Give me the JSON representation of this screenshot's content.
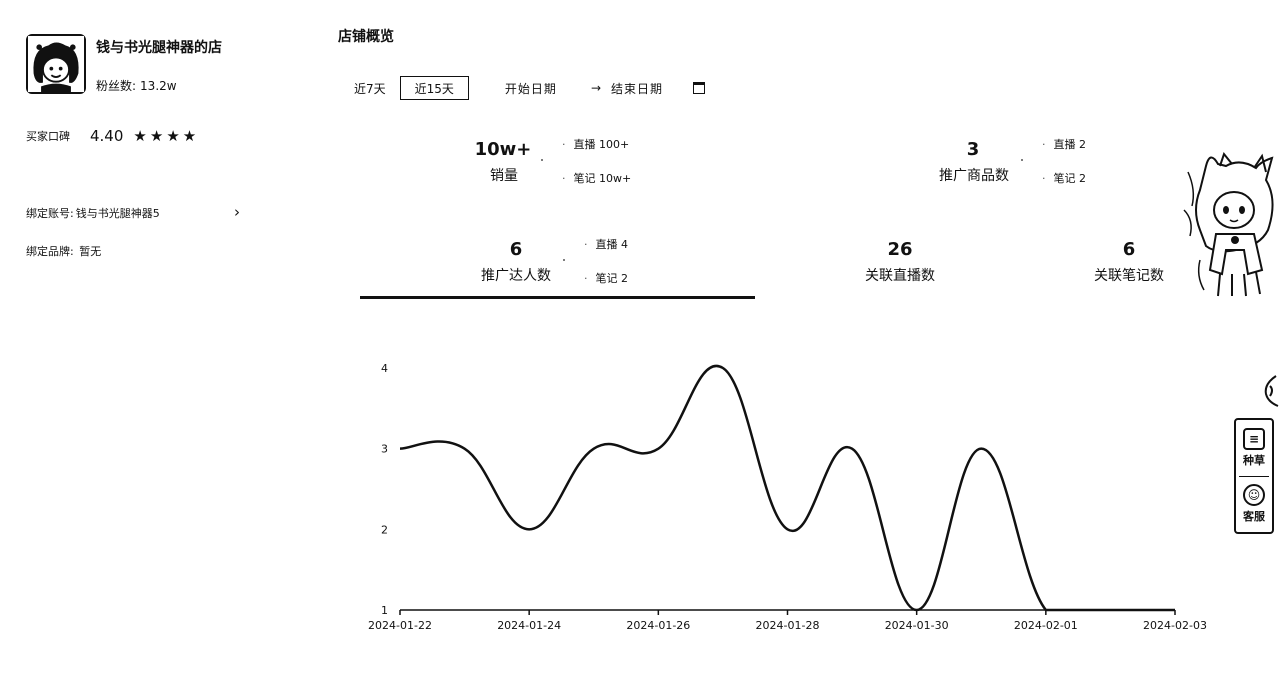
{
  "shop": {
    "name": "钱与书光腿神器的店",
    "fans_label": "粉丝数:",
    "fans_value": "13.2w",
    "rating_label": "买家口碑",
    "rating_score": "4.40",
    "stars": [
      "★",
      "★",
      "★",
      "★"
    ],
    "bind_account_label": "绑定账号:",
    "bind_account_value": "钱与书光腿神器5",
    "bind_brand_label": "绑定品牌:",
    "bind_brand_value": "暂无"
  },
  "overview": {
    "title": "店铺概览",
    "range_7": "近7天",
    "range_15": "近15天",
    "start_date": "开始日期",
    "arrow": "→",
    "end_date": "结束日期"
  },
  "metrics": {
    "sales": {
      "value": "10w+",
      "label": "销量",
      "sub1": "直播 100+",
      "sub2": "笔记 10w+"
    },
    "products": {
      "value": "3",
      "label": "推广商品数",
      "sub1": "直播 2",
      "sub2": "笔记 2"
    },
    "creators": {
      "value": "6",
      "label": "推广达人数",
      "sub1": "直播 4",
      "sub2": "笔记 2"
    },
    "lives": {
      "value": "26",
      "label": "关联直播数"
    },
    "notes": {
      "value": "6",
      "label": "关联笔记数"
    }
  },
  "side": {
    "fav_label": "种草",
    "service_label": "客服"
  },
  "chart_data": {
    "type": "line",
    "x": [
      "2024-01-22",
      "2024-01-23",
      "2024-01-24",
      "2024-01-25",
      "2024-01-26",
      "2024-01-27",
      "2024-01-28",
      "2024-01-29",
      "2024-01-30",
      "2024-01-31",
      "2024-02-01",
      "2024-02-02",
      "2024-02-03"
    ],
    "x_ticks": [
      "2024-01-22",
      "2024-01-24",
      "2024-01-26",
      "2024-01-28",
      "2024-01-30",
      "2024-02-01",
      "2024-02-03"
    ],
    "values": [
      3,
      3,
      2,
      3,
      3,
      4,
      2,
      3,
      1,
      3,
      1,
      1,
      1
    ],
    "y_ticks": [
      1,
      2,
      3,
      4
    ],
    "ylim": [
      1,
      4
    ],
    "grid": false,
    "smooth": true,
    "line_color": "#111111"
  }
}
